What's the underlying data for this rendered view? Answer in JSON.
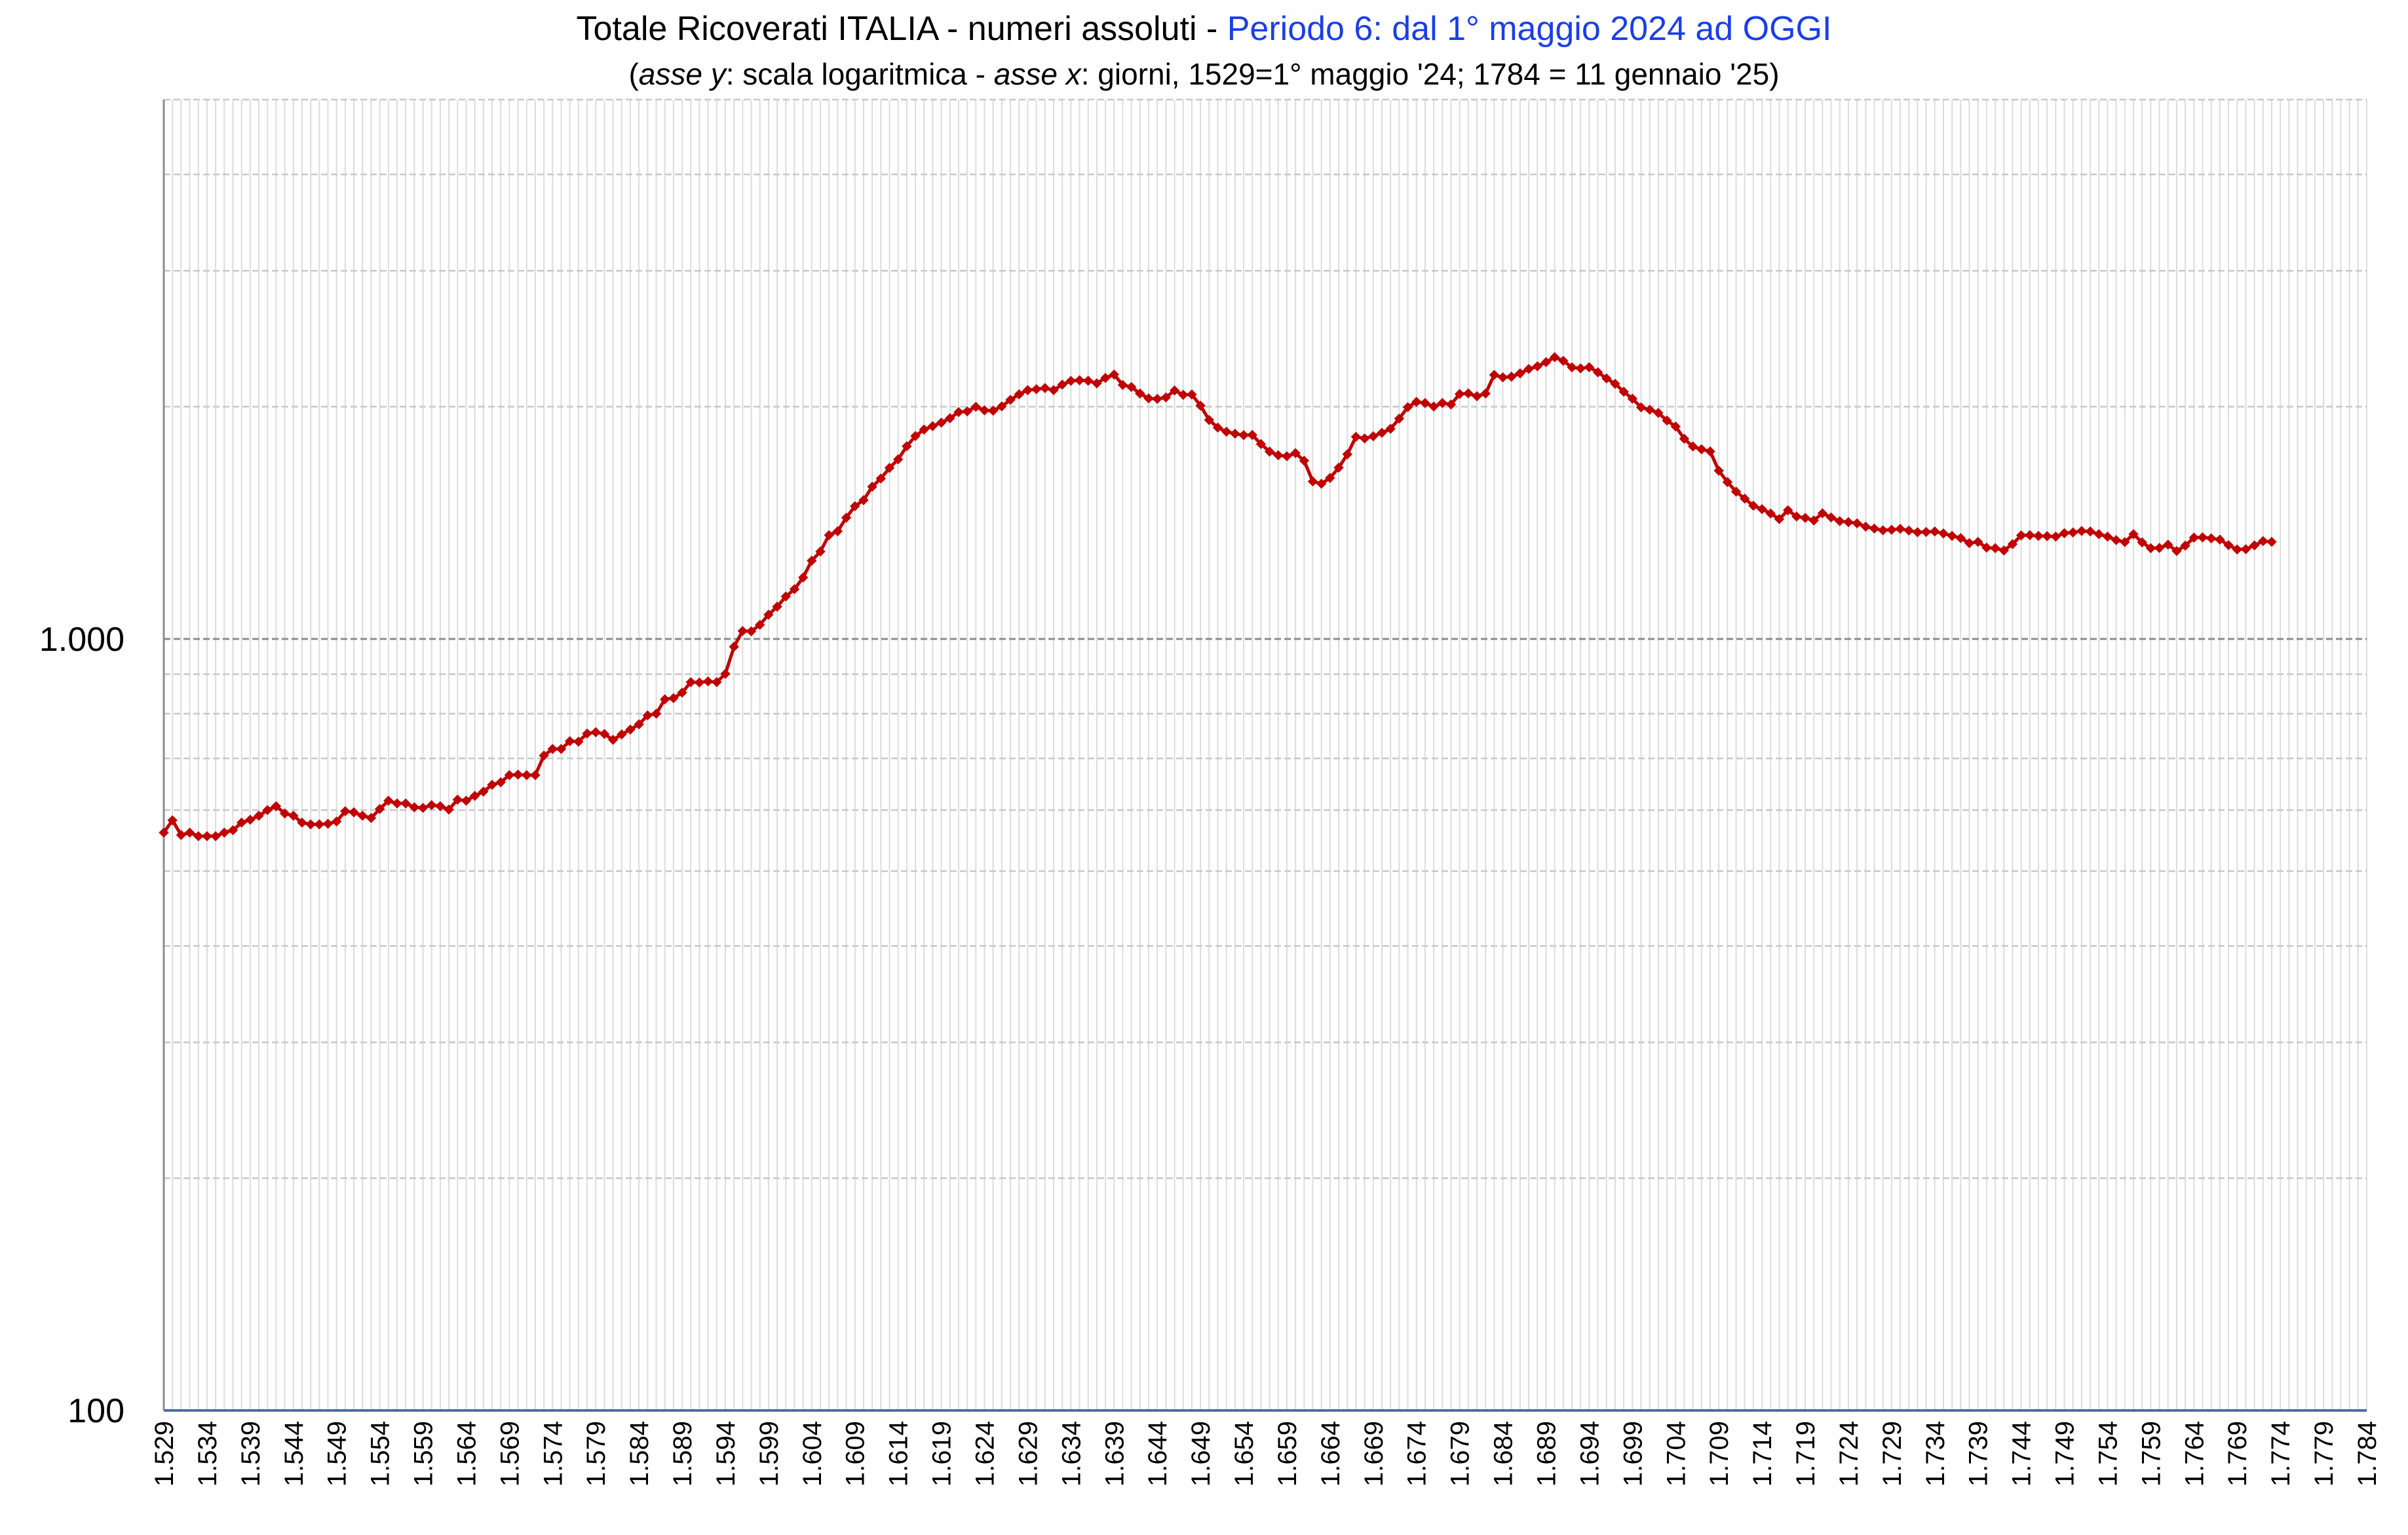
{
  "title": {
    "main": "Totale Ricoverati ITALIA - numeri assoluti - ",
    "highlight": "Periodo 6: dal 1° maggio 2024 ad OGGI",
    "highlight_color": "#1a3fe6"
  },
  "subtitle": {
    "p1": "(",
    "p2": "asse y",
    "p3": ": scala logaritmica - ",
    "p4": "asse x",
    "p5": ":  giorni, 1529=1° maggio '24; 1784 = 11 gennaio '25)"
  },
  "chart_data": {
    "type": "line",
    "y_scale": "log",
    "ylim": [
      100,
      5000
    ],
    "y_ticks": [
      {
        "value": 100,
        "label": "100"
      },
      {
        "value": 1000,
        "label": "1.000"
      }
    ],
    "xlim": [
      1529,
      1784
    ],
    "x_ticks": [
      "1.529",
      "1.534",
      "1.539",
      "1.544",
      "1.549",
      "1.554",
      "1.559",
      "1.564",
      "1.569",
      "1.574",
      "1.579",
      "1.584",
      "1.589",
      "1.594",
      "1.599",
      "1.604",
      "1.609",
      "1.614",
      "1.619",
      "1.624",
      "1.629",
      "1.634",
      "1.639",
      "1.644",
      "1.649",
      "1.654",
      "1.659",
      "1.664",
      "1.669",
      "1.674",
      "1.679",
      "1.684",
      "1.689",
      "1.694",
      "1.699",
      "1.704",
      "1.709",
      "1.714",
      "1.719",
      "1.724",
      "1.729",
      "1.734",
      "1.739",
      "1.744",
      "1.749",
      "1.754",
      "1.759",
      "1.764",
      "1.769",
      "1.774",
      "1.779",
      "1.784"
    ],
    "grid": true,
    "series": [
      {
        "color": "#c00000",
        "marker": "diamond",
        "x_start": 1529,
        "x_step": 1,
        "values": [
          561,
          582,
          557,
          561,
          555,
          555,
          555,
          561,
          565,
          578,
          583,
          590,
          600,
          607,
          594,
          590,
          578,
          575,
          575,
          576,
          580,
          598,
          596,
          590,
          586,
          602,
          617,
          612,
          612,
          605,
          604,
          609,
          607,
          601,
          619,
          617,
          626,
          634,
          647,
          652,
          666,
          667,
          666,
          666,
          706,
          720,
          720,
          737,
          736,
          754,
          757,
          753,
          740,
          752,
          763,
          775,
          796,
          800,
          835,
          838,
          852,
          879,
          878,
          881,
          879,
          901,
          977,
          1024,
          1023,
          1043,
          1075,
          1101,
          1135,
          1160,
          1201,
          1263,
          1298,
          1363,
          1379,
          1436,
          1486,
          1513,
          1575,
          1614,
          1666,
          1709,
          1777,
          1832,
          1868,
          1887,
          1907,
          1932,
          1968,
          1972,
          1999,
          1978,
          1976,
          2002,
          2041,
          2075,
          2101,
          2107,
          2114,
          2101,
          2136,
          2160,
          2164,
          2161,
          2144,
          2179,
          2201,
          2134,
          2121,
          2080,
          2050,
          2047,
          2056,
          2099,
          2072,
          2074,
          2006,
          1922,
          1879,
          1856,
          1845,
          1837,
          1838,
          1789,
          1749,
          1730,
          1725,
          1741,
          1702,
          1600,
          1589,
          1617,
          1667,
          1735,
          1828,
          1819,
          1831,
          1850,
          1872,
          1930,
          1997,
          2029,
          2022,
          2001,
          2022,
          2013,
          2077,
          2081,
          2063,
          2080,
          2199,
          2183,
          2187,
          2209,
          2238,
          2256,
          2284,
          2318,
          2293,
          2249,
          2242,
          2250,
          2216,
          2176,
          2141,
          2091,
          2048,
          1996,
          1982,
          1963,
          1919,
          1885,
          1817,
          1776,
          1761,
          1750,
          1652,
          1597,
          1552,
          1520,
          1488,
          1473,
          1454,
          1430,
          1468,
          1441,
          1435,
          1424,
          1455,
          1437,
          1421,
          1417,
          1412,
          1398,
          1390,
          1383,
          1385,
          1389,
          1382,
          1375,
          1376,
          1378,
          1370,
          1360,
          1351,
          1331,
          1336,
          1313,
          1311,
          1302,
          1327,
          1362,
          1363,
          1360,
          1359,
          1357,
          1371,
          1374,
          1380,
          1378,
          1367,
          1357,
          1343,
          1335,
          1367,
          1334,
          1311,
          1312,
          1325,
          1300,
          1321,
          1353,
          1354,
          1350,
          1345,
          1323,
          1306,
          1307,
          1322,
          1339,
          1336
        ]
      }
    ]
  }
}
